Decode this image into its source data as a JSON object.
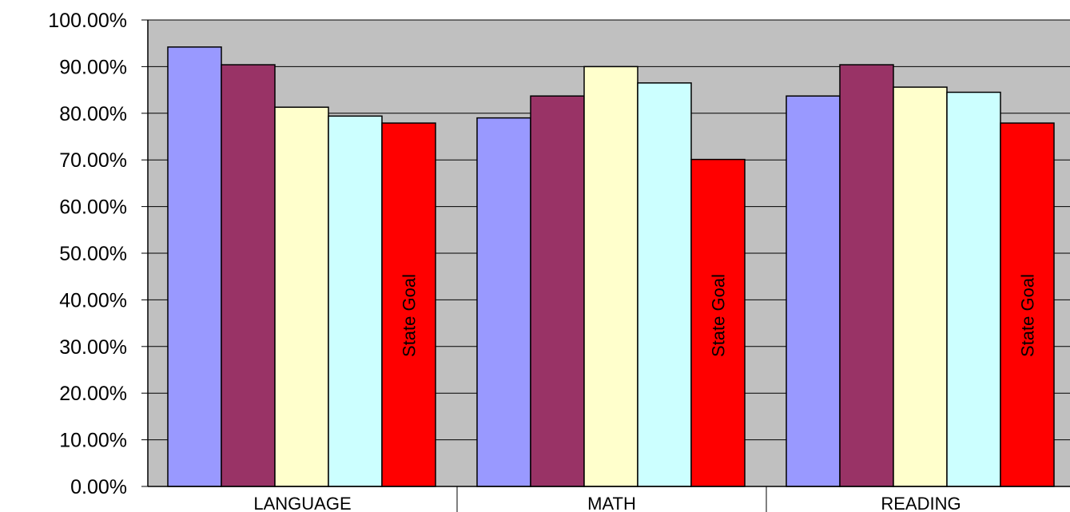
{
  "chart_data": {
    "type": "bar",
    "title": "",
    "xlabel": "",
    "ylabel": "",
    "categories": [
      "LANGUAGE",
      "MATH",
      "READING"
    ],
    "ylim": [
      0,
      100
    ],
    "y_ticks": [
      "0.00%",
      "10.00%",
      "20.00%",
      "30.00%",
      "40.00%",
      "50.00%",
      "60.00%",
      "70.00%",
      "80.00%",
      "90.00%",
      "100.00%"
    ],
    "grid": true,
    "legend": "none",
    "series": [
      {
        "color": "#9999FF",
        "values": [
          94.2,
          79.0,
          83.7
        ]
      },
      {
        "color": "#993366",
        "values": [
          90.4,
          83.7,
          90.4
        ]
      },
      {
        "color": "#FFFFCC",
        "values": [
          81.3,
          90.0,
          85.6
        ]
      },
      {
        "color": "#CCFFFF",
        "values": [
          79.4,
          86.5,
          84.5
        ]
      },
      {
        "label": "State Goal",
        "color": "#FF0000",
        "values": [
          77.9,
          70.1,
          77.9
        ]
      }
    ],
    "plot_background": "#C0C0C0"
  }
}
